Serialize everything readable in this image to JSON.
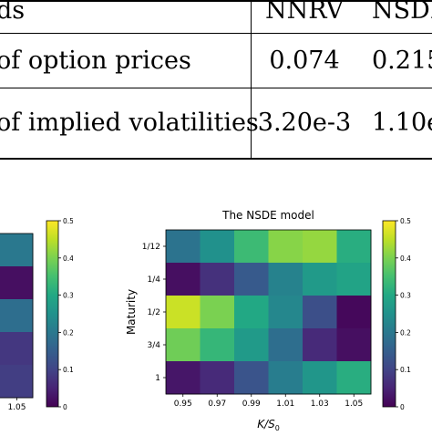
{
  "table": {
    "columns": [
      "ds",
      "NNRV",
      "NSDI"
    ],
    "rows": [
      {
        "label": "of option prices",
        "values": [
          "0.074",
          "0.215"
        ]
      },
      {
        "label": "of implied volatilities",
        "values": [
          "3.20e-3",
          "1.10e-"
        ]
      }
    ]
  },
  "chart_data": [
    {
      "type": "heatmap",
      "title": "",
      "x": [
        "1.05"
      ],
      "y": [
        "",
        "",
        "",
        "",
        ""
      ],
      "values": [
        [
          0.2
        ],
        [
          0.02
        ],
        [
          0.18
        ],
        [
          0.08
        ],
        [
          0.09
        ]
      ],
      "colorbar": {
        "ticks": [
          "0.5",
          "0.4",
          "0.3",
          "0.2",
          "0.1",
          "0"
        ],
        "range": [
          0,
          0.5
        ],
        "colormap": "viridis"
      }
    },
    {
      "type": "heatmap",
      "title": "The NSDE model",
      "xlabel": "K/S0",
      "ylabel": "Maturity",
      "x": [
        "0.95",
        "0.97",
        "0.99",
        "1.01",
        "1.03",
        "1.05"
      ],
      "y": [
        "1/12",
        "1/4",
        "1/2",
        "3/4",
        "1"
      ],
      "values": [
        [
          0.19,
          0.25,
          0.34,
          0.41,
          0.42,
          0.31
        ],
        [
          0.02,
          0.07,
          0.14,
          0.22,
          0.27,
          0.29
        ],
        [
          0.46,
          0.4,
          0.3,
          0.23,
          0.12,
          0.01
        ],
        [
          0.39,
          0.33,
          0.27,
          0.18,
          0.06,
          0.02
        ],
        [
          0.03,
          0.06,
          0.13,
          0.21,
          0.26,
          0.31
        ]
      ],
      "colorbar": {
        "ticks": [
          "0.5",
          "0.4",
          "0.3",
          "0.2",
          "0.1",
          "0"
        ],
        "range": [
          0,
          0.5
        ],
        "colormap": "viridis"
      }
    }
  ]
}
